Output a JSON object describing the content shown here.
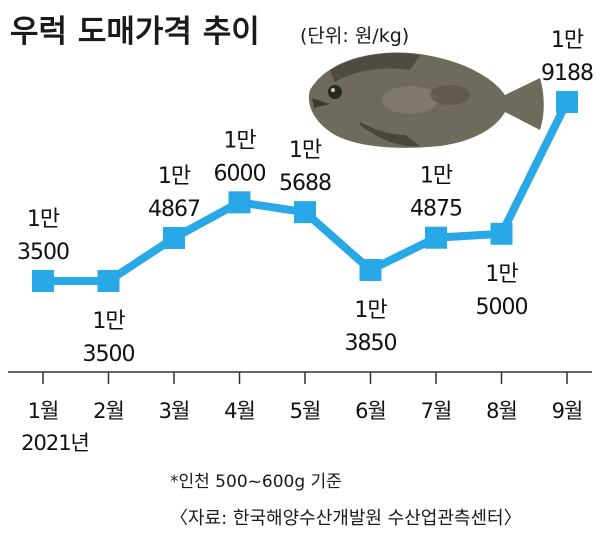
{
  "chart_data": {
    "type": "line",
    "title": "우럭 도매가격 추이",
    "unit_label": "(단위: 원/kg)",
    "categories": [
      "1월",
      "2월",
      "3월",
      "4월",
      "5월",
      "6월",
      "7월",
      "8월",
      "9월"
    ],
    "year_label": "2021년",
    "values": [
      13500,
      13500,
      14867,
      16000,
      15688,
      13850,
      14875,
      15000,
      19188
    ],
    "value_labels": [
      [
        "1만",
        "3500"
      ],
      [
        "1만",
        "3500"
      ],
      [
        "1만",
        "4867"
      ],
      [
        "1만",
        "6000"
      ],
      [
        "1만",
        "5688"
      ],
      [
        "1만",
        "3850"
      ],
      [
        "1만",
        "4875"
      ],
      [
        "1만",
        "5000"
      ],
      [
        "1만",
        "9188"
      ]
    ],
    "label_placement": [
      "above",
      "below",
      "above",
      "above",
      "above",
      "below",
      "above",
      "below",
      "above"
    ],
    "series_color": "#29a8e8",
    "grid": false
  },
  "footnote": "*인천 500~600g 기준",
  "source": "〈자료: 한국해양수산개발원 수산업관측센터〉",
  "illustration": "rockfish-photo"
}
